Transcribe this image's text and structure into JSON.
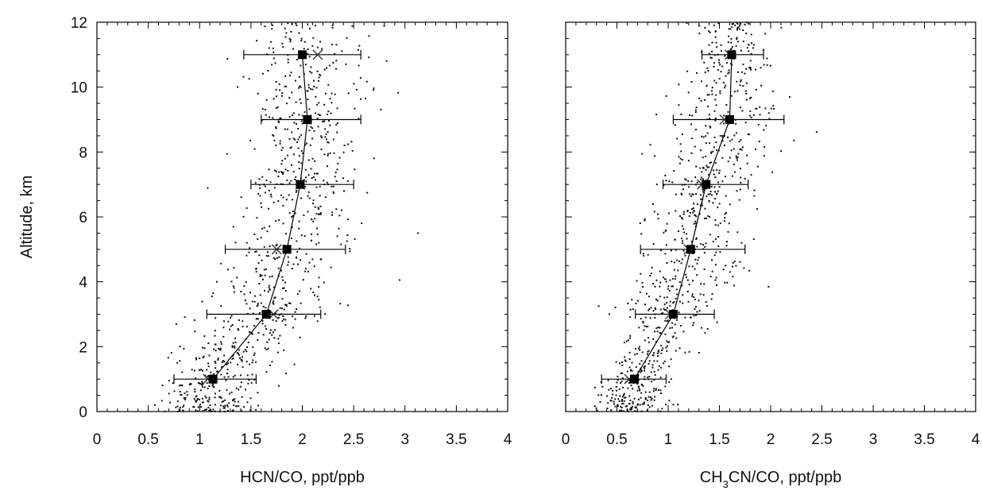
{
  "chart_data": [
    {
      "type": "scatter",
      "xlabel": "HCN/CO, ppt/ppb",
      "ylabel": "Altitude, km",
      "xlim": [
        0,
        4
      ],
      "ylim": [
        0,
        12
      ],
      "xticks": [
        "0",
        "0.5",
        "1",
        "1.5",
        "2",
        "2.5",
        "3",
        "3.5",
        "4"
      ],
      "yticks": [
        "0",
        "2",
        "4",
        "6",
        "8",
        "10",
        "12"
      ],
      "grid": false,
      "series": [
        {
          "marker": "square",
          "line": true,
          "x": [
            1.13,
            1.65,
            1.85,
            1.98,
            2.05,
            2.0
          ],
          "y": [
            1,
            3,
            5,
            7,
            9,
            11
          ],
          "xerr_low": [
            0.75,
            1.07,
            1.25,
            1.5,
            1.6,
            1.43
          ],
          "xerr_high": [
            1.55,
            2.18,
            2.42,
            2.5,
            2.57,
            2.57
          ]
        },
        {
          "marker": "cross",
          "x": [
            1.08,
            1.72,
            1.75,
            1.98,
            2.04,
            2.15
          ],
          "y": [
            1,
            3,
            5,
            7,
            9,
            11
          ]
        }
      ]
    },
    {
      "type": "scatter",
      "xlabel": "CH3CN/CO, ppt/ppb",
      "xlabel_parts": {
        "pre": "CH",
        "sub": "3",
        "post": "CN/CO, ppt/ppb"
      },
      "xlim": [
        0,
        4
      ],
      "ylim": [
        0,
        12
      ],
      "xticks": [
        "0",
        "0.5",
        "1",
        "1.5",
        "2",
        "2.5",
        "3",
        "3.5",
        "4"
      ],
      "grid": false,
      "series": [
        {
          "marker": "square",
          "line": true,
          "x": [
            0.67,
            1.05,
            1.22,
            1.37,
            1.6,
            1.62
          ],
          "y": [
            1,
            3,
            5,
            7,
            9,
            11
          ],
          "xerr_low": [
            0.35,
            0.68,
            0.73,
            0.95,
            1.05,
            1.33
          ],
          "xerr_high": [
            0.98,
            1.45,
            1.75,
            1.78,
            2.13,
            1.93
          ]
        },
        {
          "marker": "cross",
          "x": [
            0.62,
            1.02,
            1.2,
            1.33,
            1.55,
            1.6
          ],
          "y": [
            1,
            3,
            5,
            7,
            9,
            11
          ]
        }
      ]
    }
  ]
}
